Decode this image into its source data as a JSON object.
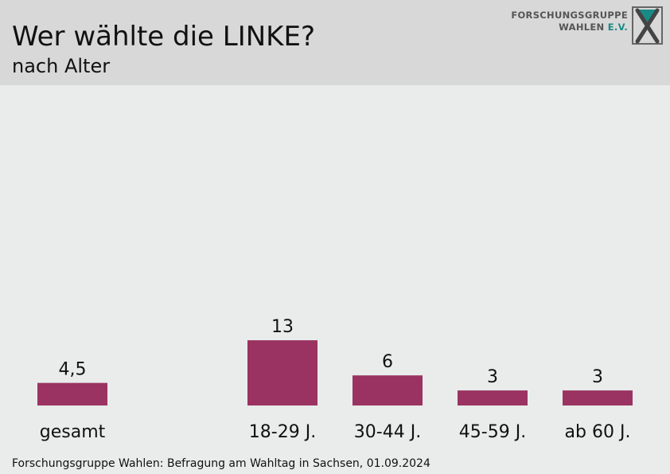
{
  "header": {
    "title": "Wer wählte die LINKE?",
    "subtitle": "nach Alter"
  },
  "logo": {
    "line1": "FORSCHUNGSGRUPPE",
    "line2_main": "WAHLEN ",
    "line2_accent": "E.V."
  },
  "footer": {
    "source": "Forschungsgruppe Wahlen: Befragung am Wahltag in Sachsen, 01.09.2024"
  },
  "colors": {
    "bar": "#9b3362",
    "header_bg": "#d8d8d8",
    "background": "#e9ecea",
    "logo_accent": "#1a8a86"
  },
  "chart_data": {
    "type": "bar",
    "categories": [
      "gesamt",
      "18-29 J.",
      "30-44 J.",
      "45-59 J.",
      "ab 60 J."
    ],
    "values": [
      4.5,
      13,
      6,
      3,
      3
    ],
    "value_labels": [
      "4,5",
      "13",
      "6",
      "3",
      "3"
    ],
    "title": "Wer wählte die LINKE?",
    "subtitle": "nach Alter",
    "xlabel": "",
    "ylabel": "",
    "grid": false,
    "legend": "none"
  }
}
